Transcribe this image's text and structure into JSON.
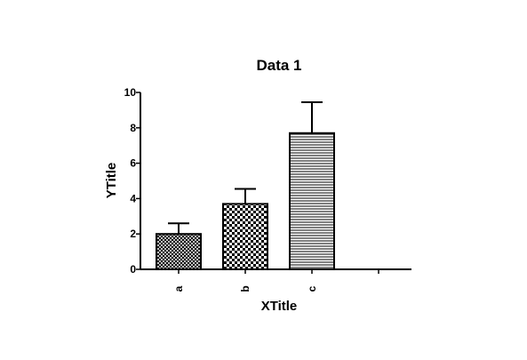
{
  "chart_data": {
    "type": "bar",
    "title": "Data 1",
    "xlabel": "XTitle",
    "ylabel": "YTitle",
    "categories": [
      "a",
      "b",
      "c"
    ],
    "values": [
      2.0,
      3.7,
      7.7
    ],
    "error_upper": [
      0.6,
      0.85,
      1.75
    ],
    "ylim": [
      0,
      10
    ],
    "y_ticks": [
      "0",
      "2",
      "4",
      "6",
      "8",
      "10"
    ],
    "grid": false,
    "legend": "none",
    "bar_patterns": [
      "dense-cross-hatch",
      "checkerboard",
      "horizontal-lines"
    ],
    "colors": {
      "ink": "#000000",
      "background": "#ffffff"
    }
  }
}
